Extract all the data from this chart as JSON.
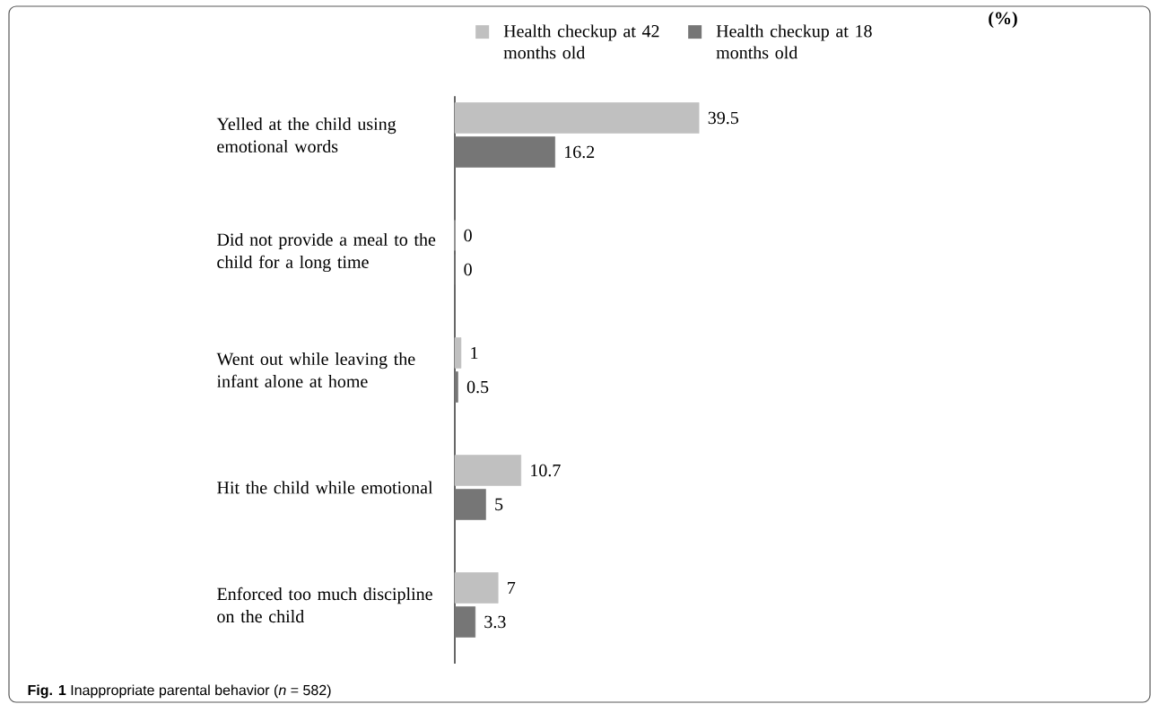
{
  "chart_data": {
    "type": "bar",
    "orientation": "horizontal",
    "legend": "top",
    "data_labels": true,
    "tick_labels": "y",
    "categories": [
      "Yelled at the child using emotional words",
      "Did not provide a meal to the child for a long time",
      "Went out while leaving the infant alone at home",
      "Hit the child while emotional",
      "Enforced too much discipline on the child"
    ],
    "series": [
      {
        "name": "Health checkup at 42 months old",
        "color": "#c0c0c0",
        "values": [
          39.5,
          0,
          1,
          10.7,
          7
        ]
      },
      {
        "name": "Health checkup at 18 months old",
        "color": "#767676",
        "values": [
          16.2,
          0,
          0.5,
          5,
          3.3
        ]
      }
    ],
    "annotations": [
      "**Fig. 1** Inappropriate parental behavior (*n* = 582)",
      "(%)"
    ]
  }
}
